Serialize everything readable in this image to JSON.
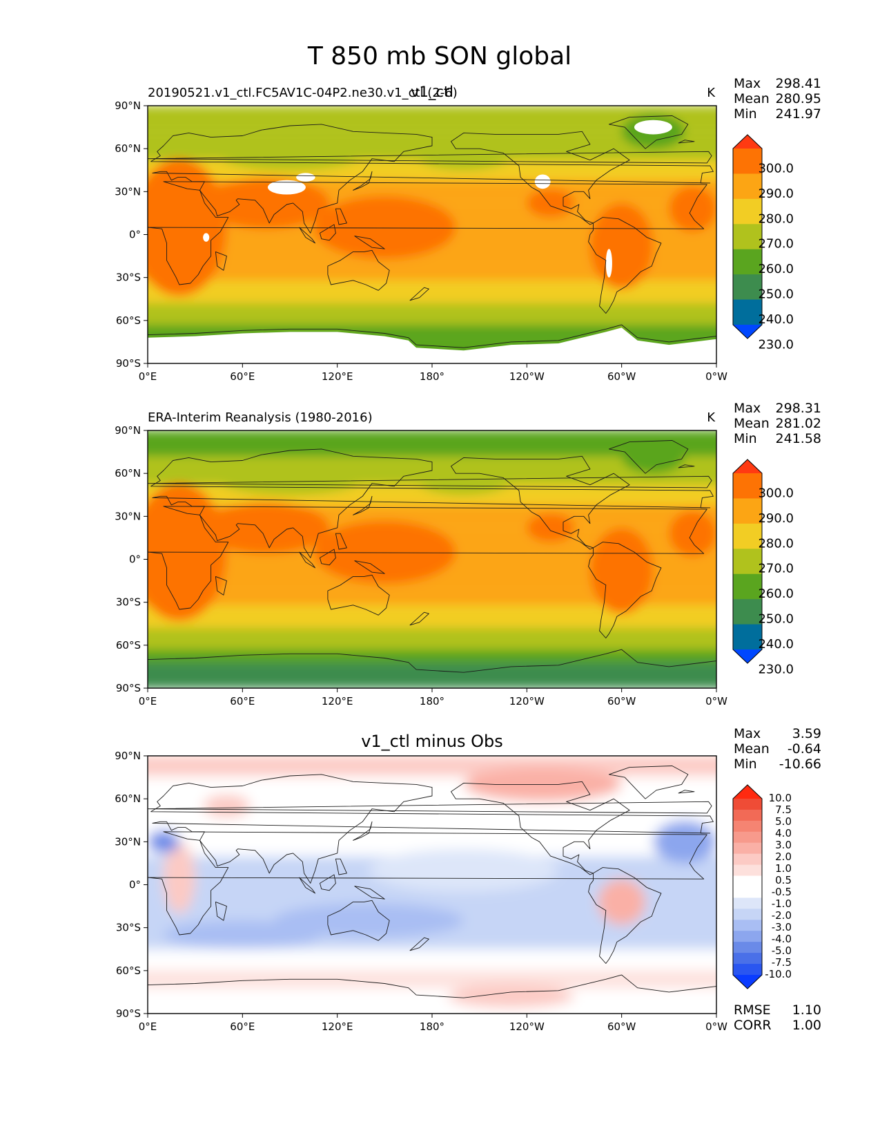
{
  "suptitle": "T 850 mb SON global",
  "colors": {
    "abs_levels": [
      "#0047ff",
      "#006e9c",
      "#3d8c4e",
      "#5aa51f",
      "#b0c21d",
      "#f2cd24",
      "#fca514",
      "#fd7304",
      "#ff3a12"
    ],
    "diff_levels": [
      "#0a3cff",
      "#2a56f0",
      "#4a70e8",
      "#6a8ae8",
      "#8ca6ee",
      "#a9bef3",
      "#c6d5f6",
      "#dde6f9",
      "#ffffff",
      "#ffffff",
      "#fde0dc",
      "#fccac4",
      "#fab0a6",
      "#f79a8c",
      "#f58472",
      "#f26a56",
      "#ef4c36",
      "#ff2a10"
    ],
    "nodata": "#ffffff",
    "coast": "#1a1a1a"
  },
  "chart_data": [
    {
      "type": "heatmap",
      "panel": "model",
      "title_left": "20190521.v1_ctl.FC5AV1C-04P2.ne30.v1_ctl (2-6)",
      "title_center": "v1_ctl",
      "title_right": "K",
      "stats": [
        {
          "label": "Max",
          "value": "298.41"
        },
        {
          "label": "Mean",
          "value": "280.95"
        },
        {
          "label": "Min",
          "value": "241.97"
        }
      ],
      "colorbar_labels": [
        "230.0",
        "240.0",
        "250.0",
        "260.0",
        "270.0",
        "280.0",
        "290.0",
        "300.0"
      ],
      "xlabels": [
        "0°E",
        "60°E",
        "120°E",
        "180°",
        "120°W",
        "60°W",
        "0°W"
      ],
      "ylabels": [
        "90°N",
        "60°N",
        "30°N",
        "0°",
        "30°S",
        "60°S",
        "90°S"
      ],
      "xlim": [
        0,
        360
      ],
      "ylim": [
        -90,
        90
      ]
    },
    {
      "type": "heatmap",
      "panel": "obs",
      "title_left": "ERA-Interim Reanalysis (1980-2016)",
      "title_center": "",
      "title_right": "K",
      "stats": [
        {
          "label": "Max",
          "value": "298.31"
        },
        {
          "label": "Mean",
          "value": "281.02"
        },
        {
          "label": "Min",
          "value": "241.58"
        }
      ],
      "colorbar_labels": [
        "230.0",
        "240.0",
        "250.0",
        "260.0",
        "270.0",
        "280.0",
        "290.0",
        "300.0"
      ],
      "xlabels": [
        "0°E",
        "60°E",
        "120°E",
        "180°",
        "120°W",
        "60°W",
        "0°W"
      ],
      "ylabels": [
        "90°N",
        "60°N",
        "30°N",
        "0°",
        "30°S",
        "60°S",
        "90°S"
      ],
      "xlim": [
        0,
        360
      ],
      "ylim": [
        -90,
        90
      ]
    },
    {
      "type": "heatmap",
      "panel": "diff",
      "title_left": "",
      "title_center": "v1_ctl minus Obs",
      "title_right": "",
      "stats": [
        {
          "label": "Max",
          "value": "3.59"
        },
        {
          "label": "Mean",
          "value": "-0.64"
        },
        {
          "label": "Min",
          "value": "-10.66"
        }
      ],
      "colorbar_labels": [
        "-10.0",
        "-7.5",
        "-5.0",
        "-4.0",
        "-3.0",
        "-2.0",
        "-1.0",
        "-0.5",
        "0.5",
        "1.0",
        "2.0",
        "3.0",
        "4.0",
        "5.0",
        "7.5",
        "10.0"
      ],
      "xlabels": [
        "0°E",
        "60°E",
        "120°E",
        "180°",
        "120°W",
        "60°W",
        "0°W"
      ],
      "ylabels": [
        "90°N",
        "60°N",
        "30°N",
        "0°",
        "30°S",
        "60°S",
        "90°S"
      ],
      "xlim": [
        0,
        360
      ],
      "ylim": [
        -90,
        90
      ],
      "extra_stats": [
        {
          "label": "RMSE",
          "value": "1.10"
        },
        {
          "label": "CORR",
          "value": "1.00"
        }
      ]
    }
  ]
}
